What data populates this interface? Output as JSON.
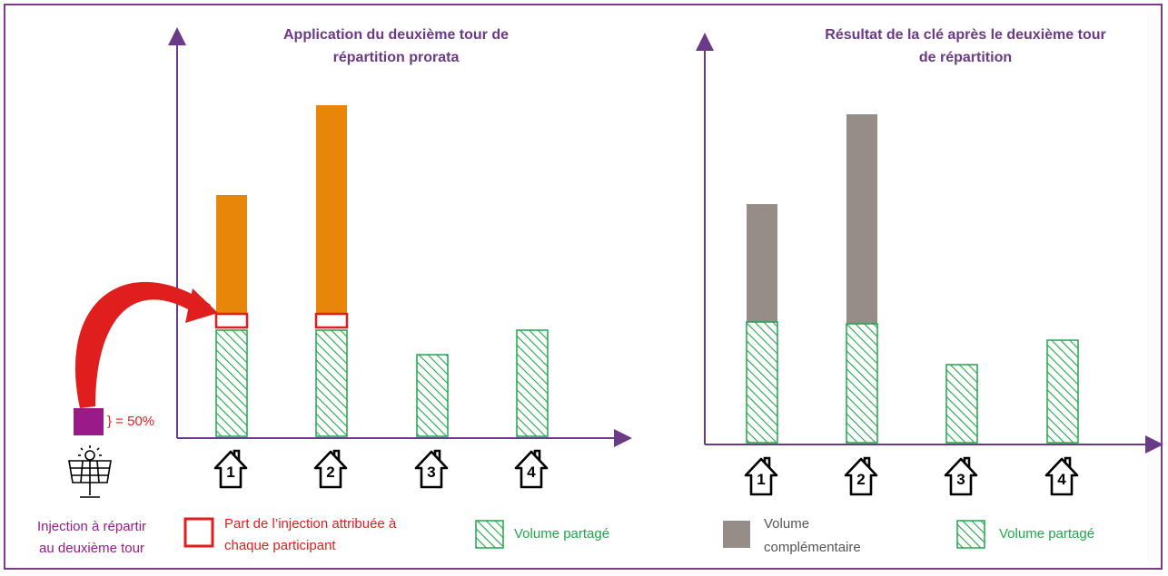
{
  "left_panel": {
    "title_line1": "Application du deuxième tour de",
    "title_line2": "répartition prorata",
    "houses": [
      "1",
      "2",
      "3",
      "4"
    ],
    "injection_percent": "} = 50%",
    "injection_label_line1": "Injection à répartir",
    "injection_label_line2": "au deuxième tour",
    "legend_part_line1": "Part de l’injection attribuée à",
    "legend_part_line2": "chaque participant",
    "legend_volume": "Volume partagé"
  },
  "right_panel": {
    "title_line1": "Résultat de la clé après le deuxième tour",
    "title_line2": "de répartition",
    "houses": [
      "1",
      "2",
      "3",
      "4"
    ],
    "legend_complement_line1": "Volume",
    "legend_complement_line2": "complémentaire",
    "legend_volume": "Volume partagé"
  },
  "colors": {
    "frame": "#7a3a86",
    "axis": "#6b3a86",
    "orange": "#e8860a",
    "grey_bar": "#968d88",
    "green": "#1fa64a",
    "red": "#e11e1e",
    "purple_square": "#9a1a8a"
  }
}
